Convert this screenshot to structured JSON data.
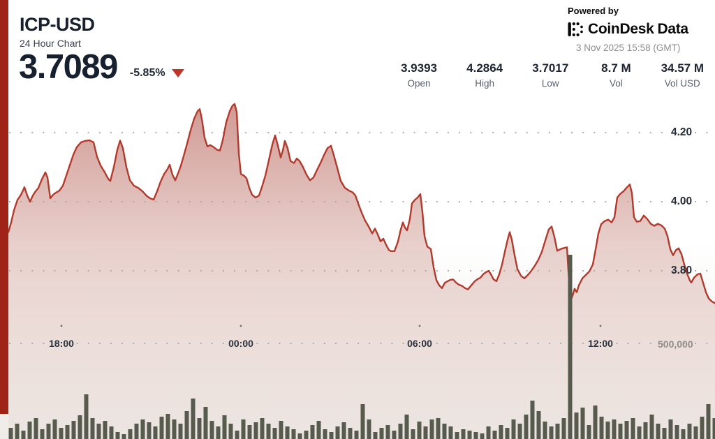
{
  "header": {
    "symbol": "ICP-USD",
    "subtitle": "24 Hour Chart",
    "price": "3.7089",
    "change_percent": "-5.85%"
  },
  "powered_by": {
    "label": "Powered by",
    "brand": "CoinDesk",
    "brand_suffix": "Data",
    "timestamp": "3 Nov 2025 15:58 (GMT)"
  },
  "stats": [
    {
      "value": "3.9393",
      "label": "Open"
    },
    {
      "value": "4.2864",
      "label": "High"
    },
    {
      "value": "3.7017",
      "label": "Low"
    },
    {
      "value": "8.7 M",
      "label": "Vol"
    },
    {
      "value": "34.57 M",
      "label": "Vol USD"
    }
  ],
  "colors": {
    "accent_stripe": "#a02317",
    "line": "#b23a2c",
    "area_top": "rgba(165,55,43,0.52)",
    "area_bottom": "rgba(190,120,100,0.04)",
    "volume_bar": "#575b4e",
    "grid_dot": "#b3a9a2",
    "change_triangle": "#c23427"
  },
  "chart_data": {
    "type": "area",
    "title": "ICP-USD 24 Hour Chart",
    "ylim": [
      3.69,
      4.3
    ],
    "grid": "dotted",
    "y_axis": {
      "ticks": [
        {
          "label": "4.20",
          "value": 4.2
        },
        {
          "label": "4.00",
          "value": 4.0
        },
        {
          "label": "3.80",
          "value": 3.8
        }
      ]
    },
    "x_axis": {
      "ticks": [
        {
          "label": "18:00",
          "x": 88
        },
        {
          "label": "00:00",
          "x": 345
        },
        {
          "label": "06:00",
          "x": 601
        },
        {
          "label": "12:00",
          "x": 860
        }
      ]
    },
    "volume_axis_label": "500,000",
    "price_points": [
      [
        12,
        3.912
      ],
      [
        16,
        3.94
      ],
      [
        20,
        3.975
      ],
      [
        25,
        4.005
      ],
      [
        30,
        4.02
      ],
      [
        35,
        4.042
      ],
      [
        39,
        4.018
      ],
      [
        43,
        4.0
      ],
      [
        47,
        4.018
      ],
      [
        51,
        4.03
      ],
      [
        55,
        4.04
      ],
      [
        60,
        4.065
      ],
      [
        65,
        4.085
      ],
      [
        68,
        4.07
      ],
      [
        72,
        4.01
      ],
      [
        76,
        4.02
      ],
      [
        80,
        4.026
      ],
      [
        85,
        4.032
      ],
      [
        90,
        4.046
      ],
      [
        95,
        4.076
      ],
      [
        100,
        4.106
      ],
      [
        105,
        4.136
      ],
      [
        110,
        4.158
      ],
      [
        116,
        4.172
      ],
      [
        122,
        4.176
      ],
      [
        128,
        4.178
      ],
      [
        134,
        4.172
      ],
      [
        139,
        4.13
      ],
      [
        144,
        4.105
      ],
      [
        150,
        4.085
      ],
      [
        155,
        4.066
      ],
      [
        158,
        4.06
      ],
      [
        163,
        4.1
      ],
      [
        168,
        4.15
      ],
      [
        172,
        4.177
      ],
      [
        176,
        4.155
      ],
      [
        181,
        4.1
      ],
      [
        186,
        4.062
      ],
      [
        192,
        4.046
      ],
      [
        198,
        4.04
      ],
      [
        204,
        4.03
      ],
      [
        210,
        4.017
      ],
      [
        215,
        4.01
      ],
      [
        220,
        4.006
      ],
      [
        225,
        4.03
      ],
      [
        230,
        4.058
      ],
      [
        235,
        4.08
      ],
      [
        240,
        4.095
      ],
      [
        243,
        4.107
      ],
      [
        247,
        4.078
      ],
      [
        251,
        4.062
      ],
      [
        255,
        4.082
      ],
      [
        259,
        4.104
      ],
      [
        263,
        4.132
      ],
      [
        268,
        4.168
      ],
      [
        273,
        4.207
      ],
      [
        278,
        4.24
      ],
      [
        283,
        4.262
      ],
      [
        286,
        4.268
      ],
      [
        289,
        4.24
      ],
      [
        293,
        4.185
      ],
      [
        297,
        4.16
      ],
      [
        301,
        4.164
      ],
      [
        306,
        4.158
      ],
      [
        311,
        4.15
      ],
      [
        315,
        4.148
      ],
      [
        319,
        4.178
      ],
      [
        324,
        4.23
      ],
      [
        329,
        4.262
      ],
      [
        333,
        4.278
      ],
      [
        336,
        4.283
      ],
      [
        339,
        4.26
      ],
      [
        342,
        4.14
      ],
      [
        345,
        4.08
      ],
      [
        349,
        4.076
      ],
      [
        353,
        4.068
      ],
      [
        357,
        4.04
      ],
      [
        361,
        4.02
      ],
      [
        366,
        4.012
      ],
      [
        371,
        4.018
      ],
      [
        375,
        4.042
      ],
      [
        380,
        4.075
      ],
      [
        385,
        4.12
      ],
      [
        390,
        4.165
      ],
      [
        394,
        4.192
      ],
      [
        398,
        4.162
      ],
      [
        402,
        4.128
      ],
      [
        405,
        4.148
      ],
      [
        408,
        4.176
      ],
      [
        412,
        4.154
      ],
      [
        416,
        4.118
      ],
      [
        421,
        4.112
      ],
      [
        425,
        4.125
      ],
      [
        429,
        4.118
      ],
      [
        434,
        4.1
      ],
      [
        439,
        4.078
      ],
      [
        444,
        4.062
      ],
      [
        449,
        4.07
      ],
      [
        454,
        4.092
      ],
      [
        459,
        4.112
      ],
      [
        464,
        4.135
      ],
      [
        469,
        4.155
      ],
      [
        474,
        4.162
      ],
      [
        478,
        4.135
      ],
      [
        483,
        4.098
      ],
      [
        488,
        4.06
      ],
      [
        494,
        4.04
      ],
      [
        500,
        4.032
      ],
      [
        505,
        4.027
      ],
      [
        509,
        4.018
      ],
      [
        513,
        3.995
      ],
      [
        518,
        3.968
      ],
      [
        523,
        3.945
      ],
      [
        528,
        3.928
      ],
      [
        533,
        3.908
      ],
      [
        537,
        3.922
      ],
      [
        541,
        3.905
      ],
      [
        545,
        3.885
      ],
      [
        549,
        3.893
      ],
      [
        553,
        3.875
      ],
      [
        557,
        3.86
      ],
      [
        560,
        3.857
      ],
      [
        565,
        3.857
      ],
      [
        570,
        3.885
      ],
      [
        574,
        3.92
      ],
      [
        577,
        3.94
      ],
      [
        580,
        3.925
      ],
      [
        583,
        3.917
      ],
      [
        587,
        3.95
      ],
      [
        590,
        3.995
      ],
      [
        594,
        4.005
      ],
      [
        598,
        4.012
      ],
      [
        602,
        4.022
      ],
      [
        605,
        3.97
      ],
      [
        608,
        3.9
      ],
      [
        612,
        3.87
      ],
      [
        617,
        3.863
      ],
      [
        621,
        3.81
      ],
      [
        625,
        3.773
      ],
      [
        629,
        3.758
      ],
      [
        633,
        3.75
      ],
      [
        637,
        3.765
      ],
      [
        641,
        3.77
      ],
      [
        645,
        3.774
      ],
      [
        649,
        3.775
      ],
      [
        653,
        3.766
      ],
      [
        657,
        3.76
      ],
      [
        662,
        3.756
      ],
      [
        666,
        3.75
      ],
      [
        670,
        3.746
      ],
      [
        675,
        3.758
      ],
      [
        680,
        3.77
      ],
      [
        684,
        3.776
      ],
      [
        688,
        3.78
      ],
      [
        692,
        3.79
      ],
      [
        696,
        3.796
      ],
      [
        700,
        3.8
      ],
      [
        703,
        3.79
      ],
      [
        707,
        3.775
      ],
      [
        711,
        3.77
      ],
      [
        715,
        3.79
      ],
      [
        719,
        3.818
      ],
      [
        723,
        3.855
      ],
      [
        727,
        3.89
      ],
      [
        730,
        3.912
      ],
      [
        733,
        3.89
      ],
      [
        737,
        3.845
      ],
      [
        741,
        3.805
      ],
      [
        746,
        3.786
      ],
      [
        751,
        3.778
      ],
      [
        756,
        3.788
      ],
      [
        761,
        3.8
      ],
      [
        766,
        3.815
      ],
      [
        771,
        3.832
      ],
      [
        776,
        3.855
      ],
      [
        781,
        3.888
      ],
      [
        786,
        3.92
      ],
      [
        790,
        3.928
      ],
      [
        794,
        3.898
      ],
      [
        798,
        3.858
      ],
      [
        802,
        3.862
      ],
      [
        806,
        3.865
      ],
      [
        810,
        3.867
      ],
      [
        812,
        3.868
      ],
      [
        814,
        3.8
      ],
      [
        817,
        3.712
      ],
      [
        820,
        3.728
      ],
      [
        823,
        3.748
      ],
      [
        826,
        3.738
      ],
      [
        829,
        3.758
      ],
      [
        834,
        3.778
      ],
      [
        839,
        3.788
      ],
      [
        844,
        3.798
      ],
      [
        849,
        3.818
      ],
      [
        853,
        3.862
      ],
      [
        857,
        3.908
      ],
      [
        861,
        3.935
      ],
      [
        866,
        3.944
      ],
      [
        871,
        3.948
      ],
      [
        876,
        3.94
      ],
      [
        880,
        3.955
      ],
      [
        884,
        4.012
      ],
      [
        888,
        4.022
      ],
      [
        893,
        4.03
      ],
      [
        898,
        4.042
      ],
      [
        902,
        4.05
      ],
      [
        905,
        4.025
      ],
      [
        908,
        3.955
      ],
      [
        912,
        3.942
      ],
      [
        917,
        3.944
      ],
      [
        922,
        3.96
      ],
      [
        927,
        3.95
      ],
      [
        932,
        3.936
      ],
      [
        937,
        3.93
      ],
      [
        942,
        3.936
      ],
      [
        947,
        3.932
      ],
      [
        952,
        3.922
      ],
      [
        956,
        3.9
      ],
      [
        960,
        3.862
      ],
      [
        964,
        3.845
      ],
      [
        968,
        3.86
      ],
      [
        972,
        3.865
      ],
      [
        976,
        3.848
      ],
      [
        980,
        3.818
      ],
      [
        984,
        3.792
      ],
      [
        988,
        3.772
      ],
      [
        990,
        3.766
      ],
      [
        994,
        3.78
      ],
      [
        999,
        3.79
      ],
      [
        1003,
        3.792
      ],
      [
        1007,
        3.765
      ],
      [
        1011,
        3.738
      ],
      [
        1015,
        3.72
      ],
      [
        1019,
        3.712
      ],
      [
        1024,
        3.706
      ]
    ],
    "volume_bars": [
      16,
      22,
      12,
      25,
      30,
      14,
      22,
      28,
      16,
      20,
      26,
      34,
      64,
      30,
      22,
      26,
      18,
      10,
      7,
      14,
      22,
      28,
      24,
      18,
      32,
      36,
      28,
      22,
      40,
      58,
      30,
      46,
      26,
      18,
      34,
      22,
      12,
      28,
      20,
      24,
      30,
      22,
      16,
      26,
      18,
      14,
      8,
      12,
      20,
      26,
      14,
      10,
      18,
      24,
      16,
      12,
      50,
      28,
      10,
      16,
      20,
      12,
      22,
      35,
      14,
      25,
      18,
      28,
      30,
      22,
      18,
      10,
      14,
      12,
      10,
      8,
      18,
      12,
      20,
      16,
      28,
      22,
      35,
      55,
      40,
      25,
      18,
      22,
      30,
      264,
      38,
      45,
      20,
      48,
      32,
      25,
      28,
      22,
      26,
      30,
      18,
      24,
      35,
      22,
      16,
      28,
      20,
      14,
      22,
      18,
      32,
      50,
      30
    ]
  }
}
